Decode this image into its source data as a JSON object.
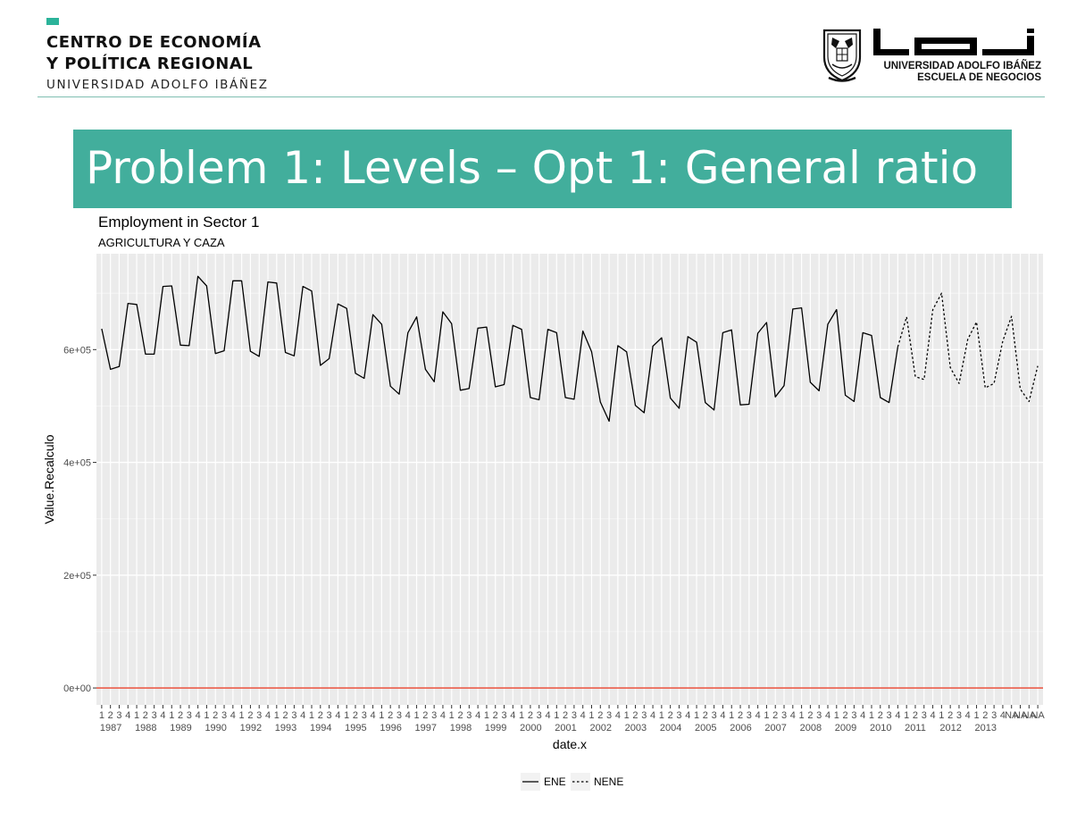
{
  "header": {
    "left_logo": {
      "line1": "CENTRO DE ECONOMÍA",
      "line2": "Y POLÍTICA REGIONAL",
      "line3": "UNIVERSIDAD ADOLFO IBÁÑEZ",
      "accent_color": "#2bb39a"
    },
    "right_logo": {
      "line1": "UNIVERSIDAD ADOLFO IBÁÑEZ",
      "line2": "ESCUELA DE NEGOCIOS"
    }
  },
  "slide": {
    "title": "Problem 1: Levels – Opt 1: General ratio",
    "title_bar_color": "#42ae9c"
  },
  "chart_data": {
    "type": "line",
    "title": "Employment in Sector  1",
    "subtitle": "AGRICULTURA Y CAZA",
    "xlabel": "date.x",
    "ylabel": "Value.Recalculo",
    "ylim": [
      -30000,
      770000
    ],
    "yticks": [
      {
        "value": 0,
        "label": "0e+00"
      },
      {
        "value": 200000,
        "label": "2e+05"
      },
      {
        "value": 400000,
        "label": "4e+05"
      },
      {
        "value": 600000,
        "label": "6e+05"
      }
    ],
    "reference_line": {
      "y": 0,
      "color": "#e8402a"
    },
    "grid": true,
    "panel_background": "#ebebeb",
    "legend_position": "bottom",
    "years": [
      "1987",
      "1988",
      "1989",
      "1990",
      "1992",
      "1993",
      "1994",
      "1995",
      "1996",
      "1997",
      "1998",
      "1999",
      "2000",
      "2001",
      "2002",
      "2003",
      "2004",
      "2005",
      "2006",
      "2007",
      "2008",
      "2009",
      "2010",
      "2011",
      "2012",
      "2013"
    ],
    "quarter_labels": [
      "1",
      "2",
      "3",
      "4",
      "1",
      "2",
      "3",
      "4",
      "1",
      "2",
      "3",
      "4",
      "1",
      "2",
      "3",
      "4",
      "1",
      "2",
      "3",
      "4",
      "1",
      "2",
      "3",
      "4",
      "1",
      "2",
      "3",
      "4",
      "1",
      "2",
      "3",
      "4",
      "1",
      "2",
      "3",
      "4",
      "1",
      "2",
      "3",
      "4",
      "1",
      "2",
      "3",
      "4",
      "1",
      "2",
      "3",
      "4",
      "1",
      "2",
      "3",
      "4",
      "1",
      "2",
      "3",
      "4",
      "1",
      "2",
      "3",
      "4",
      "1",
      "2",
      "3",
      "4",
      "1",
      "2",
      "3",
      "4",
      "1",
      "2",
      "3",
      "4",
      "1",
      "2",
      "3",
      "4",
      "1",
      "2",
      "3",
      "4",
      "1",
      "2",
      "3",
      "4",
      "1",
      "2",
      "3",
      "4",
      "1",
      "2",
      "3",
      "4",
      "1",
      "2",
      "3",
      "4",
      "1",
      "2",
      "3",
      "4",
      "1",
      "2",
      "3",
      "4",
      "NA",
      "NA",
      "NA",
      "NA"
    ],
    "series": [
      {
        "name": "ENE",
        "style": "solid",
        "start_index": 0,
        "values": [
          637000,
          565000,
          570000,
          682000,
          680000,
          592000,
          592000,
          712000,
          713000,
          608000,
          607000,
          730000,
          713000,
          593000,
          598000,
          722000,
          722000,
          597000,
          588000,
          720000,
          718000,
          595000,
          589000,
          712000,
          704000,
          572000,
          584000,
          681000,
          673000,
          558000,
          549000,
          662000,
          645000,
          535000,
          521000,
          630000,
          658000,
          565000,
          543000,
          667000,
          646000,
          528000,
          531000,
          638000,
          640000,
          534000,
          538000,
          643000,
          636000,
          515000,
          511000,
          636000,
          630000,
          515000,
          512000,
          633000,
          596000,
          507000,
          473000,
          607000,
          596000,
          501000,
          488000,
          606000,
          621000,
          514000,
          496000,
          623000,
          613000,
          506000,
          493000,
          630000,
          635000,
          502000,
          503000,
          629000,
          648000,
          516000,
          536000,
          672000,
          674000,
          542000,
          527000,
          645000,
          671000,
          519000,
          508000,
          630000,
          625000,
          515000,
          506000,
          605000
        ]
      },
      {
        "name": "NENE",
        "style": "dotted",
        "start_index": 91,
        "values": [
          605000,
          658000,
          552000,
          547000,
          671000,
          700000,
          568000,
          540000,
          618000,
          649000,
          532000,
          540000,
          615000,
          659000,
          530000,
          508000,
          571000
        ]
      }
    ]
  }
}
